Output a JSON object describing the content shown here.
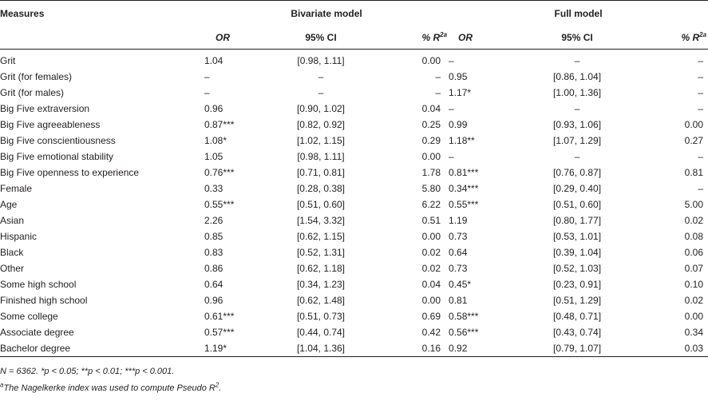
{
  "table": {
    "measures_label": "Measures",
    "group_bivariate": "Bivariate model",
    "group_full": "Full model",
    "col_or": "OR",
    "col_ci": "95% CI",
    "col_r2": "% R",
    "col_r2_sup": "2a",
    "rows": [
      {
        "measure": "Grit",
        "b_or": "1.04",
        "b_ci": "[0.98, 1.11]",
        "b_r2": "0.00",
        "f_or": "–",
        "f_ci": "–",
        "f_r2": "–"
      },
      {
        "measure": "Grit (for females)",
        "b_or": "–",
        "b_ci": "–",
        "b_r2": "–",
        "f_or": "0.95",
        "f_ci": "[0.86, 1.04]",
        "f_r2": "–"
      },
      {
        "measure": "Grit (for males)",
        "b_or": "–",
        "b_ci": "–",
        "b_r2": "–",
        "f_or": "1.17*",
        "f_ci": "[1.00, 1.36]",
        "f_r2": "–"
      },
      {
        "measure": "Big Five extraversion",
        "b_or": "0.96",
        "b_ci": "[0.90, 1.02]",
        "b_r2": "0.04",
        "f_or": "–",
        "f_ci": "–",
        "f_r2": "–"
      },
      {
        "measure": "Big Five agreeableness",
        "b_or": "0.87***",
        "b_ci": "[0.82, 0.92]",
        "b_r2": "0.25",
        "f_or": "0.99",
        "f_ci": "[0.93, 1.06]",
        "f_r2": "0.00"
      },
      {
        "measure": "Big Five conscientiousness",
        "b_or": "1.08*",
        "b_ci": "[1.02, 1.15]",
        "b_r2": "0.29",
        "f_or": "1.18**",
        "f_ci": "[1.07, 1.29]",
        "f_r2": "0.27"
      },
      {
        "measure": "Big Five emotional stability",
        "b_or": "1.05",
        "b_ci": "[0.98, 1.11]",
        "b_r2": "0.00",
        "f_or": "–",
        "f_ci": "–",
        "f_r2": "–"
      },
      {
        "measure": "Big Five openness to experience",
        "b_or": "0.76***",
        "b_ci": "[0.71, 0.81]",
        "b_r2": "1.78",
        "f_or": "0.81***",
        "f_ci": "[0.76, 0.87]",
        "f_r2": "0.81"
      },
      {
        "measure": "Female",
        "b_or": "0.33",
        "b_ci": "[0.28, 0.38]",
        "b_r2": "5.80",
        "f_or": "0.34***",
        "f_ci": "[0.29, 0.40]",
        "f_r2": "–"
      },
      {
        "measure": "Age",
        "b_or": "0.55***",
        "b_ci": "[0.51, 0.60]",
        "b_r2": "6.22",
        "f_or": "0.55***",
        "f_ci": "[0.51, 0.60]",
        "f_r2": "5.00"
      },
      {
        "measure": "Asian",
        "b_or": "2.26",
        "b_ci": "[1.54, 3.32]",
        "b_r2": "0.51",
        "f_or": "1.19",
        "f_ci": "[0.80, 1.77]",
        "f_r2": "0.02"
      },
      {
        "measure": "Hispanic",
        "b_or": "0.85",
        "b_ci": "[0.62, 1.15]",
        "b_r2": "0.00",
        "f_or": "0.73",
        "f_ci": "[0.53, 1.01]",
        "f_r2": "0.08"
      },
      {
        "measure": "Black",
        "b_or": "0.83",
        "b_ci": "[0.52, 1.31]",
        "b_r2": "0.02",
        "f_or": "0.64",
        "f_ci": "[0.39, 1.04]",
        "f_r2": "0.06"
      },
      {
        "measure": "Other",
        "b_or": "0.86",
        "b_ci": "[0.62, 1.18]",
        "b_r2": "0.02",
        "f_or": "0.73",
        "f_ci": "[0.52, 1.03]",
        "f_r2": "0.07"
      },
      {
        "measure": "Some high school",
        "b_or": "0.64",
        "b_ci": "[0.34, 1.23]",
        "b_r2": "0.04",
        "f_or": "0.45*",
        "f_ci": "[0.23, 0.91]",
        "f_r2": "0.10"
      },
      {
        "measure": "Finished high school",
        "b_or": "0.96",
        "b_ci": "[0.62, 1.48]",
        "b_r2": "0.00",
        "f_or": "0.81",
        "f_ci": "[0.51, 1.29]",
        "f_r2": "0.02"
      },
      {
        "measure": "Some college",
        "b_or": "0.61***",
        "b_ci": "[0.51, 0.73]",
        "b_r2": "0.69",
        "f_or": "0.58***",
        "f_ci": "[0.48, 0.71]",
        "f_r2": "0.00"
      },
      {
        "measure": "Associate degree",
        "b_or": "0.57***",
        "b_ci": "[0.44, 0.74]",
        "b_r2": "0.42",
        "f_or": "0.56***",
        "f_ci": "[0.43, 0.74]",
        "f_r2": "0.34"
      },
      {
        "measure": "Bachelor degree",
        "b_or": "1.19*",
        "b_ci": "[1.04, 1.36]",
        "b_r2": "0.16",
        "f_or": "0.92",
        "f_ci": "[0.79, 1.07]",
        "f_r2": "0.03"
      }
    ]
  },
  "notes": {
    "line1": "N = 6362. *p < 0.05; **p < 0.01; ***p < 0.001.",
    "line2_sup": "a",
    "line2": "The Nagelkerke index was used to compute Pseudo R",
    "line2_sup2": "2",
    "line2_end": "."
  }
}
